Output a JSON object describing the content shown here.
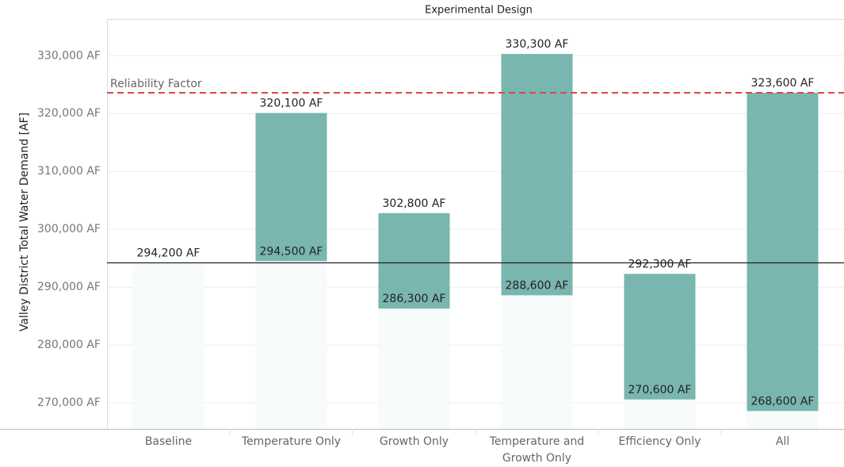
{
  "chart_data": {
    "type": "range-bar",
    "title": "Experimental Design",
    "y_label": "Valley District Total Water Demand [AF]",
    "categories": [
      "Baseline",
      "Temperature Only",
      "Growth Only",
      "Temperature and Growth Only",
      "Efficiency Only",
      "All"
    ],
    "lows": [
      294200,
      294500,
      286300,
      288600,
      270600,
      268600
    ],
    "low_labels": [
      "294,200 AF",
      "294,500 AF",
      "286,300 AF",
      "288,600 AF",
      "270,600 AF",
      "268,600 AF"
    ],
    "highs": [
      null,
      320100,
      302800,
      330300,
      292300,
      323600
    ],
    "high_labels": [
      null,
      "320,100 AF",
      "302,800 AF",
      "330,300 AF",
      "292,300 AF",
      "323,600 AF"
    ],
    "color": "#79b6b0",
    "base_color": "#f7fbfb",
    "ylim": [
      265500,
      336200
    ],
    "yticks": [
      {
        "value": 270000,
        "label": "270,000 AF"
      },
      {
        "value": 280000,
        "label": "280,000 AF"
      },
      {
        "value": 290000,
        "label": "290,000 AF"
      },
      {
        "value": 300000,
        "label": "300,000 AF"
      },
      {
        "value": 310000,
        "label": "310,000 AF"
      },
      {
        "value": 320000,
        "label": "320,000 AF"
      },
      {
        "value": 330000,
        "label": "330,000 AF"
      }
    ],
    "grid": true,
    "reference_lines": [
      {
        "value": 294200,
        "color": "#222222",
        "dashed": false
      },
      {
        "value": 323600,
        "color": "#e0434b",
        "dashed": true,
        "label": "Reliability Factor"
      }
    ]
  }
}
